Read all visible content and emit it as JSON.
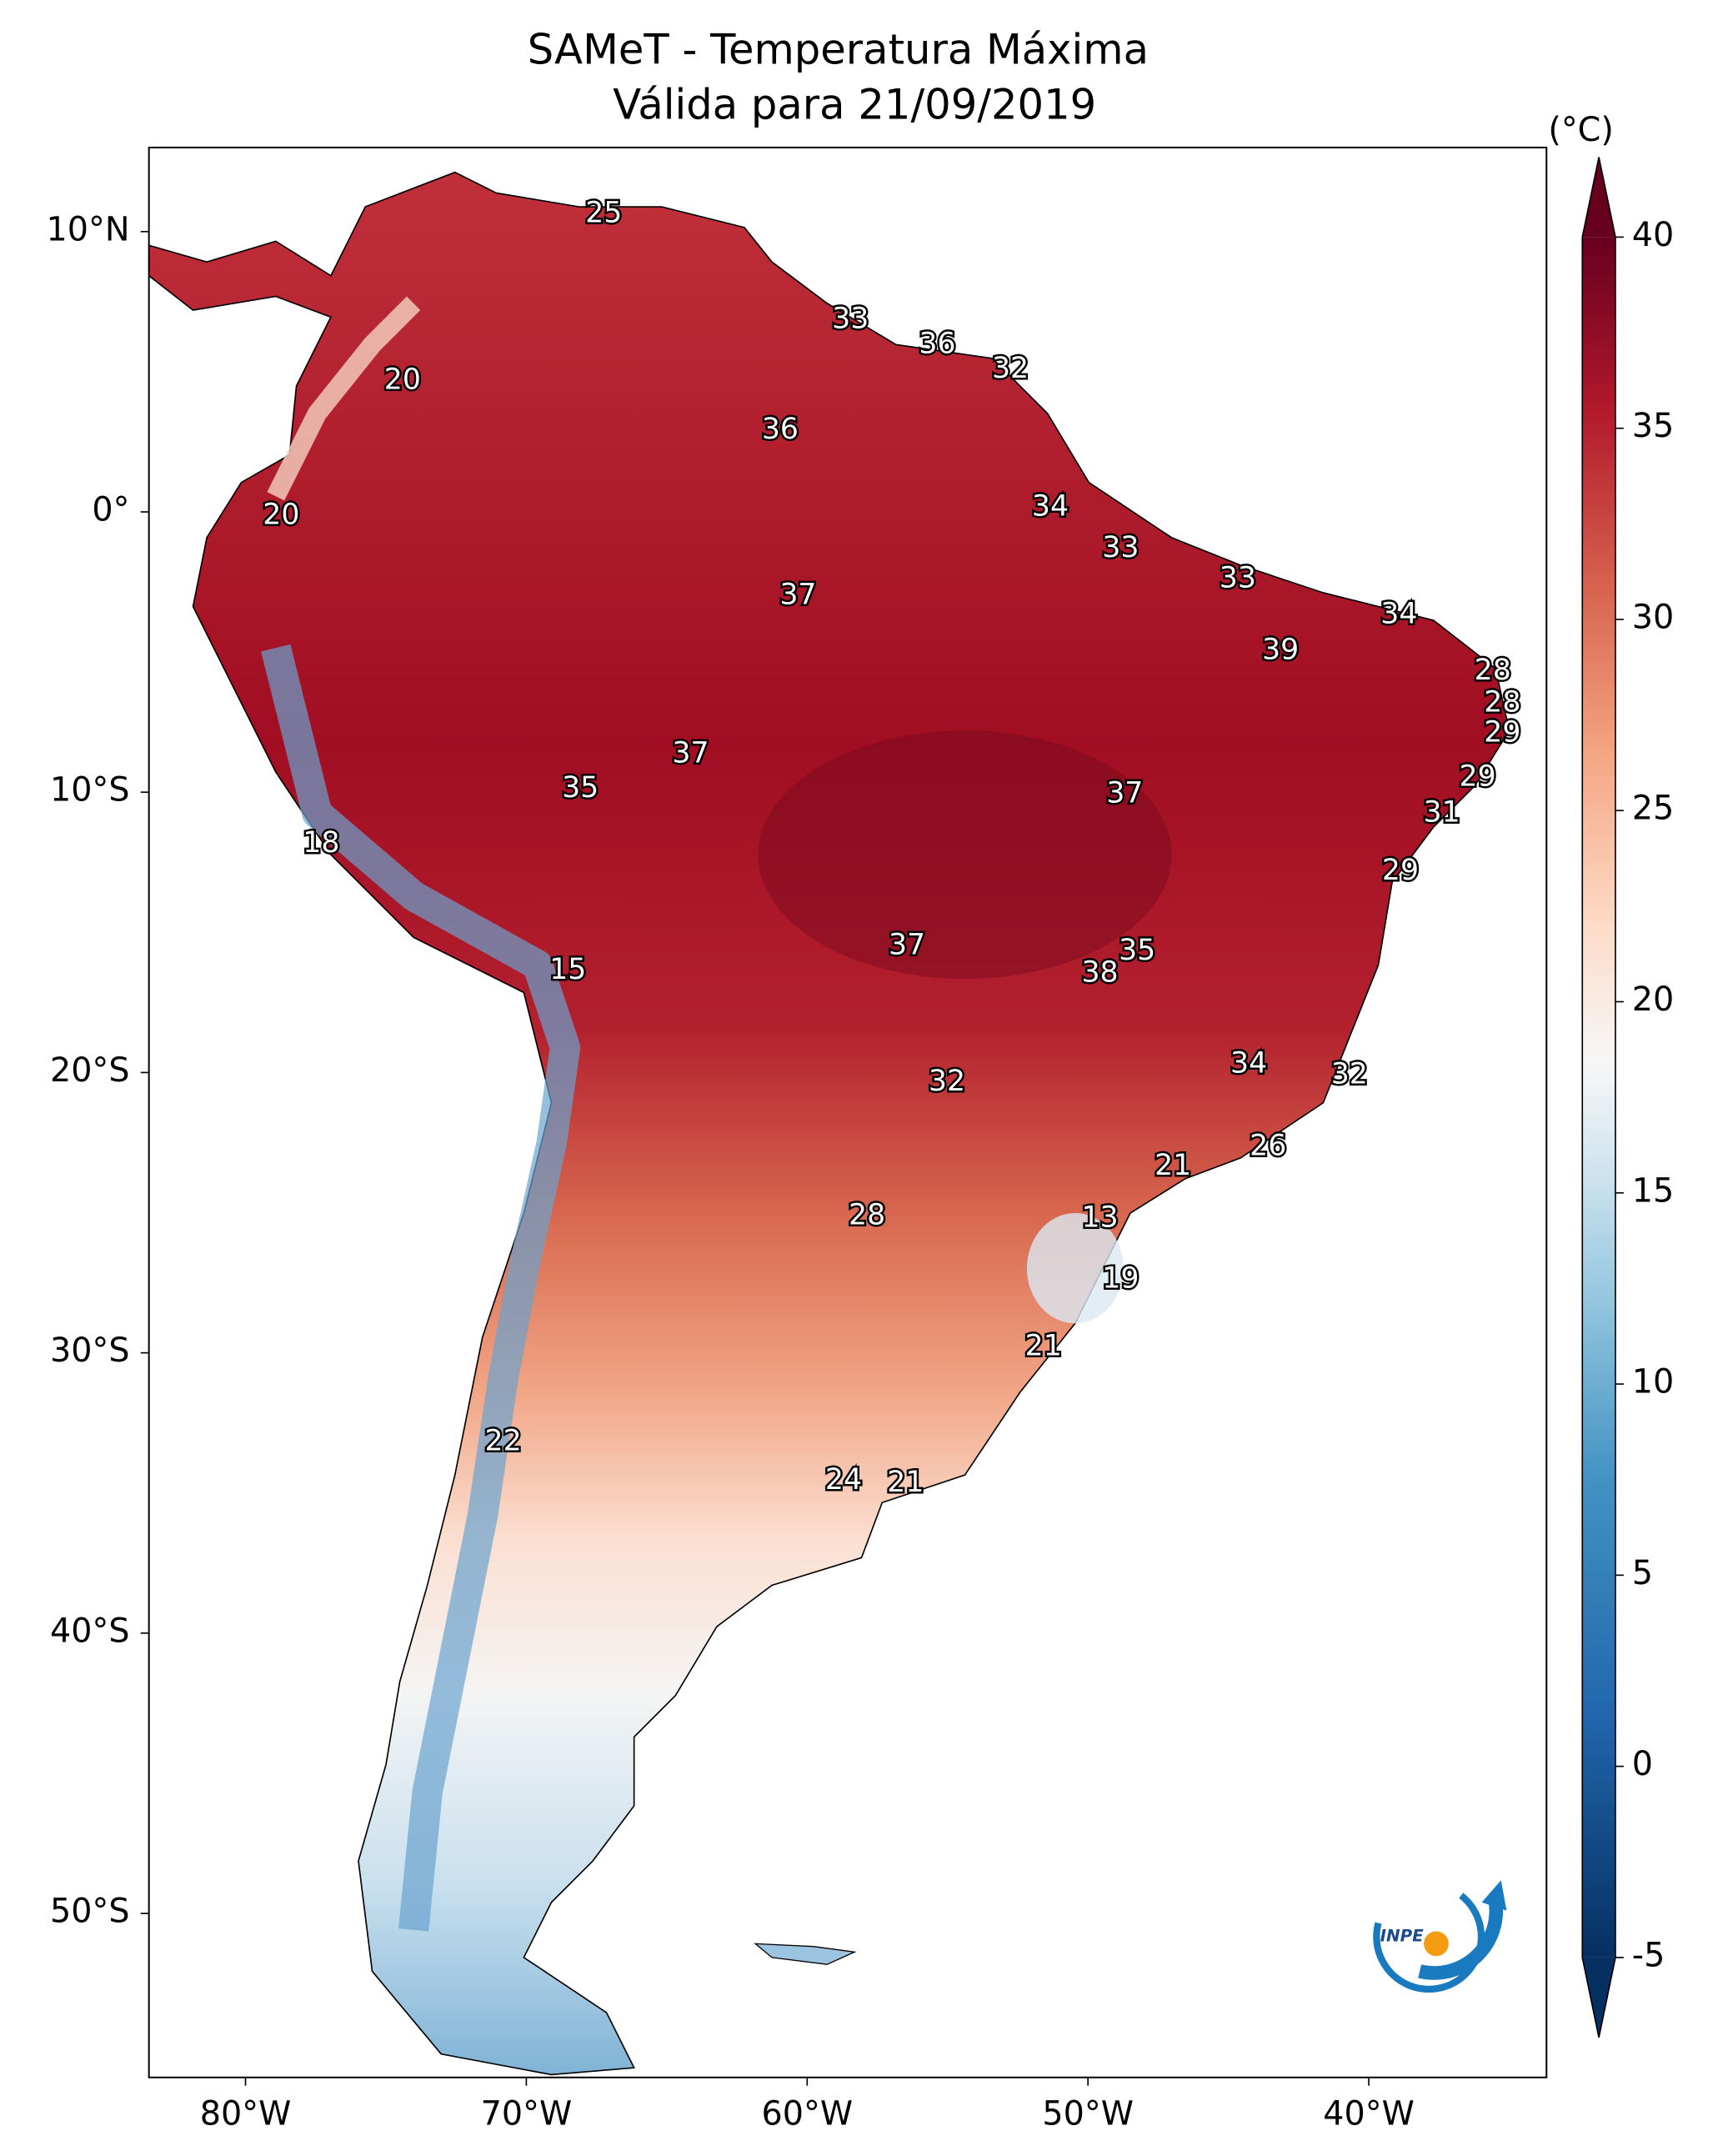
{
  "chart_data": {
    "type": "map",
    "title": "SAMeT - Temperatura Máxima",
    "subtitle": "Válida para 21/09/2019",
    "xlim": [
      -83.44,
      -33.67
    ],
    "ylim": [
      -55.85,
      13.0
    ],
    "xticks": [
      {
        "value": -80,
        "label": "80°W"
      },
      {
        "value": -70,
        "label": "70°W"
      },
      {
        "value": -60,
        "label": "60°W"
      },
      {
        "value": -50,
        "label": "50°W"
      },
      {
        "value": -40,
        "label": "40°W"
      }
    ],
    "yticks": [
      {
        "value": 10,
        "label": "10°N"
      },
      {
        "value": 0,
        "label": "0°"
      },
      {
        "value": -10,
        "label": "10°S"
      },
      {
        "value": -20,
        "label": "20°S"
      },
      {
        "value": -30,
        "label": "30°S"
      },
      {
        "value": -40,
        "label": "40°S"
      },
      {
        "value": -50,
        "label": "50°S"
      }
    ],
    "colorbar": {
      "label": "(°C)",
      "lim": [
        -5,
        40
      ],
      "ticks": [
        {
          "value": -5,
          "label": "-5"
        },
        0,
        5,
        10,
        15,
        20,
        25,
        30,
        35,
        40
      ]
    },
    "station_values": [
      25,
      33,
      36,
      32,
      20,
      36,
      34,
      20,
      33,
      33,
      37,
      34,
      39,
      28,
      28,
      29,
      37,
      29,
      35,
      37,
      31,
      18,
      29,
      37,
      35,
      15,
      38,
      34,
      32,
      32,
      26,
      21,
      28,
      13,
      19,
      21,
      22,
      24,
      21
    ],
    "logo_text": "INPE"
  }
}
